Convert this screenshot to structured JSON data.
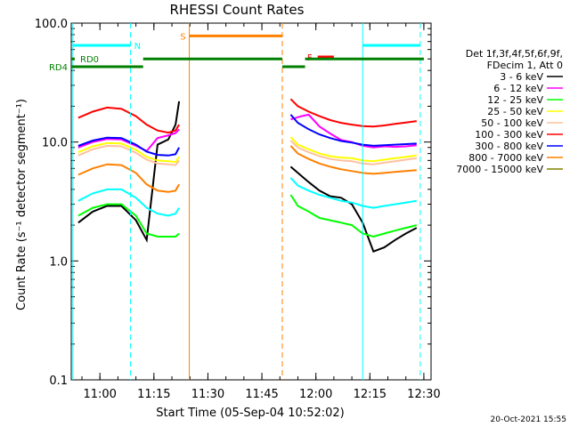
{
  "chart_data": {
    "type": "line",
    "title": "RHESSI Count Rates",
    "xlabel": "Start Time (05-Sep-04 10:52:02)",
    "ylabel": "Count Rate (s⁻¹ detector segment⁻¹)",
    "ylim": [
      0.1,
      100.0
    ],
    "yscale": "log",
    "y_tick_labels": [
      "100.0",
      "10.0",
      "1.0",
      "0.1"
    ],
    "y_ticks": [
      100.0,
      10.0,
      1.0,
      0.1
    ],
    "xlim": [
      "10:52:02",
      "12:32:00"
    ],
    "x_tick_labels": [
      "11:00",
      "11:15",
      "11:30",
      "11:45",
      "12:00",
      "12:15",
      "12:30"
    ],
    "x_ticks": [
      "11:00",
      "11:15",
      "11:30",
      "11:45",
      "12:00",
      "12:15",
      "12:30"
    ],
    "grid": false,
    "legend_position": "right",
    "legend_header": [
      "Det 1f,3f,4f,5f,6f,9f,",
      "FDecim 1, Att 0"
    ],
    "series": [
      {
        "name": "3 - 6 keV",
        "color": "#000000",
        "x": [
          "10:54",
          "10:58",
          "11:02",
          "11:06",
          "11:10",
          "11:13",
          "11:16",
          "11:19",
          "11:21",
          "11:22",
          "11:53",
          "11:55",
          "11:58",
          "12:01",
          "12:04",
          "12:07",
          "12:10",
          "12:13",
          "12:16",
          "12:19",
          "12:22",
          "12:25",
          "12:28"
        ],
        "y": [
          2.1,
          2.6,
          2.9,
          2.9,
          2.2,
          1.5,
          9.5,
          10.5,
          14.0,
          22.0,
          6.2,
          5.5,
          4.6,
          3.9,
          3.5,
          3.4,
          3.0,
          2.1,
          1.2,
          1.3,
          1.5,
          1.7,
          1.9
        ]
      },
      {
        "name": "6 - 12 keV",
        "color": "#ff00ff",
        "x": [
          "10:54",
          "10:58",
          "11:02",
          "11:06",
          "11:10",
          "11:13",
          "11:16",
          "11:19",
          "11:21",
          "11:22",
          "11:53",
          "11:56",
          "11:58",
          "12:01",
          "12:04",
          "12:07",
          "12:10",
          "12:13",
          "12:16",
          "12:19",
          "12:22",
          "12:25",
          "12:28"
        ],
        "y": [
          9.0,
          10.0,
          10.6,
          10.5,
          9.3,
          8.4,
          10.8,
          11.4,
          11.9,
          12.8,
          15.5,
          16.5,
          17.0,
          13.5,
          11.8,
          10.4,
          10.0,
          9.3,
          9.0,
          9.2,
          9.1,
          9.2,
          9.4
        ]
      },
      {
        "name": "12 - 25 keV",
        "color": "#00ff00",
        "x": [
          "10:54",
          "10:58",
          "11:02",
          "11:06",
          "11:10",
          "11:13",
          "11:16",
          "11:19",
          "11:21",
          "11:22",
          "11:53",
          "11:55",
          "11:58",
          "12:01",
          "12:04",
          "12:07",
          "12:10",
          "12:13",
          "12:16",
          "12:19",
          "12:22",
          "12:25",
          "12:28"
        ],
        "y": [
          2.4,
          2.8,
          3.0,
          3.0,
          2.4,
          1.7,
          1.6,
          1.6,
          1.6,
          1.7,
          3.6,
          2.9,
          2.6,
          2.3,
          2.2,
          2.1,
          2.0,
          1.7,
          1.6,
          1.7,
          1.8,
          1.9,
          2.0
        ]
      },
      {
        "name": "25 - 50 keV",
        "color": "#ffff00",
        "x": [
          "10:54",
          "10:58",
          "11:02",
          "11:06",
          "11:10",
          "11:13",
          "11:16",
          "11:19",
          "11:21",
          "11:22",
          "11:53",
          "11:55",
          "11:58",
          "12:01",
          "12:04",
          "12:07",
          "12:10",
          "12:13",
          "12:16",
          "12:19",
          "12:22",
          "12:25",
          "12:28"
        ],
        "y": [
          8.2,
          9.2,
          9.8,
          9.7,
          8.6,
          7.5,
          7.0,
          6.9,
          6.8,
          7.5,
          11.0,
          9.5,
          8.7,
          8.0,
          7.6,
          7.4,
          7.3,
          7.0,
          6.9,
          7.1,
          7.3,
          7.5,
          7.7
        ]
      },
      {
        "name": "50 - 100 keV",
        "color": "#ffc0a0",
        "x": [
          "10:54",
          "10:58",
          "11:02",
          "11:06",
          "11:10",
          "11:13",
          "11:16",
          "11:19",
          "11:21",
          "11:22",
          "11:53",
          "11:55",
          "11:58",
          "12:01",
          "12:04",
          "12:07",
          "12:10",
          "12:13",
          "12:16",
          "12:19",
          "12:22",
          "12:25",
          "12:28"
        ],
        "y": [
          7.7,
          8.7,
          9.3,
          9.2,
          8.1,
          7.1,
          6.6,
          6.5,
          6.4,
          7.0,
          10.3,
          9.0,
          8.2,
          7.6,
          7.2,
          7.0,
          6.9,
          6.6,
          6.5,
          6.7,
          6.9,
          7.1,
          7.3
        ]
      },
      {
        "name": "100 - 300 keV",
        "color": "#ff0000",
        "x": [
          "10:54",
          "10:58",
          "11:02",
          "11:06",
          "11:10",
          "11:13",
          "11:16",
          "11:19",
          "11:21",
          "11:22",
          "11:53",
          "11:55",
          "11:58",
          "12:01",
          "12:04",
          "12:07",
          "12:10",
          "12:13",
          "12:16",
          "12:19",
          "12:22",
          "12:25",
          "12:28"
        ],
        "y": [
          16.0,
          18.0,
          19.5,
          19.0,
          16.5,
          14.0,
          12.5,
          12.0,
          12.5,
          14.0,
          23.0,
          20.0,
          18.0,
          16.5,
          15.3,
          14.5,
          14.0,
          13.6,
          13.5,
          13.8,
          14.2,
          14.6,
          15.0
        ]
      },
      {
        "name": "300 - 800 keV",
        "color": "#0000ff",
        "x": [
          "10:54",
          "10:58",
          "11:02",
          "11:06",
          "11:10",
          "11:13",
          "11:16",
          "11:19",
          "11:21",
          "11:22",
          "11:53",
          "11:55",
          "11:58",
          "12:01",
          "12:04",
          "12:07",
          "12:10",
          "12:13",
          "12:16",
          "12:19",
          "12:22",
          "12:25",
          "12:28"
        ],
        "y": [
          9.3,
          10.3,
          10.9,
          10.8,
          9.5,
          8.3,
          7.8,
          7.7,
          7.9,
          9.0,
          17.0,
          14.5,
          12.8,
          11.6,
          10.8,
          10.2,
          9.9,
          9.5,
          9.3,
          9.4,
          9.5,
          9.6,
          9.7
        ]
      },
      {
        "name": "800 - 7000 keV",
        "color": "#ff8000",
        "x": [
          "10:54",
          "10:58",
          "11:02",
          "11:06",
          "11:10",
          "11:13",
          "11:16",
          "11:19",
          "11:21",
          "11:22",
          "11:53",
          "11:55",
          "11:58",
          "12:01",
          "12:04",
          "12:07",
          "12:10",
          "12:13",
          "12:16",
          "12:19",
          "12:22",
          "12:25",
          "12:28"
        ],
        "y": [
          5.3,
          6.0,
          6.5,
          6.4,
          5.5,
          4.4,
          3.9,
          3.8,
          3.9,
          4.4,
          9.3,
          8.0,
          7.2,
          6.6,
          6.2,
          5.9,
          5.7,
          5.5,
          5.4,
          5.5,
          5.6,
          5.7,
          5.8
        ]
      },
      {
        "name": "7000 - 15000 keV",
        "color": "#808000",
        "x": [],
        "y": []
      },
      {
        "name": "extra-cyan",
        "color": "#00ffff",
        "show_in_legend": false,
        "x": [
          "10:54",
          "10:58",
          "11:02",
          "11:06",
          "11:10",
          "11:13",
          "11:16",
          "11:19",
          "11:21",
          "11:22",
          "11:53",
          "11:55",
          "11:58",
          "12:01",
          "12:04",
          "12:07",
          "12:10",
          "12:13",
          "12:16",
          "12:19",
          "12:22",
          "12:25",
          "12:28"
        ],
        "y": [
          3.2,
          3.7,
          4.0,
          4.0,
          3.4,
          2.8,
          2.5,
          2.4,
          2.5,
          2.8,
          5.0,
          4.3,
          3.9,
          3.6,
          3.4,
          3.2,
          3.1,
          2.9,
          2.8,
          2.9,
          3.0,
          3.1,
          3.2
        ]
      }
    ],
    "vertical_markers": [
      {
        "time": "10:52:30",
        "color": "#00ffff",
        "style": "solid"
      },
      {
        "time": "11:08:30",
        "color": "#00ffff",
        "style": "dashed"
      },
      {
        "time": "11:24:50",
        "color": "#ff8000",
        "style": "solid"
      },
      {
        "time": "11:50:40",
        "color": "#ff8000",
        "style": "dashed"
      },
      {
        "time": "12:13:00",
        "color": "#00ffff",
        "style": "solid"
      },
      {
        "time": "12:29:00",
        "color": "#00ffff",
        "style": "dashed"
      }
    ],
    "flag_bars": [
      {
        "label": "",
        "color": "#00ffff",
        "level": 65.0,
        "ranges": [
          [
            "10:52:30",
            "11:08:30"
          ],
          [
            "12:13:00",
            "12:29:00"
          ]
        ]
      },
      {
        "label": "N",
        "color": "#00ffff",
        "label_at": "11:09:30",
        "level": 65.0
      },
      {
        "label": "S",
        "color": "#ff8000",
        "level": 78.0,
        "ranges": [
          [
            "11:24:50",
            "11:50:40"
          ]
        ]
      },
      {
        "label": "F",
        "color": "#ff0000",
        "level": 52.0,
        "ranges": [
          [
            "12:00:30",
            "12:05:00"
          ]
        ]
      },
      {
        "label": "RD0",
        "color": "#008000",
        "level": 50.0,
        "ranges": [
          [
            "10:52:02",
            "10:53:00"
          ],
          [
            "11:12:00",
            "11:50:40"
          ],
          [
            "11:57:00",
            "12:30:00"
          ]
        ]
      },
      {
        "label": "RD4",
        "color": "#008000",
        "level": 43.0,
        "ranges": [
          [
            "10:52:02",
            "11:12:00"
          ],
          [
            "11:50:40",
            "11:57:00"
          ]
        ]
      }
    ],
    "timestamp": "20-Oct-2021 15:55"
  }
}
